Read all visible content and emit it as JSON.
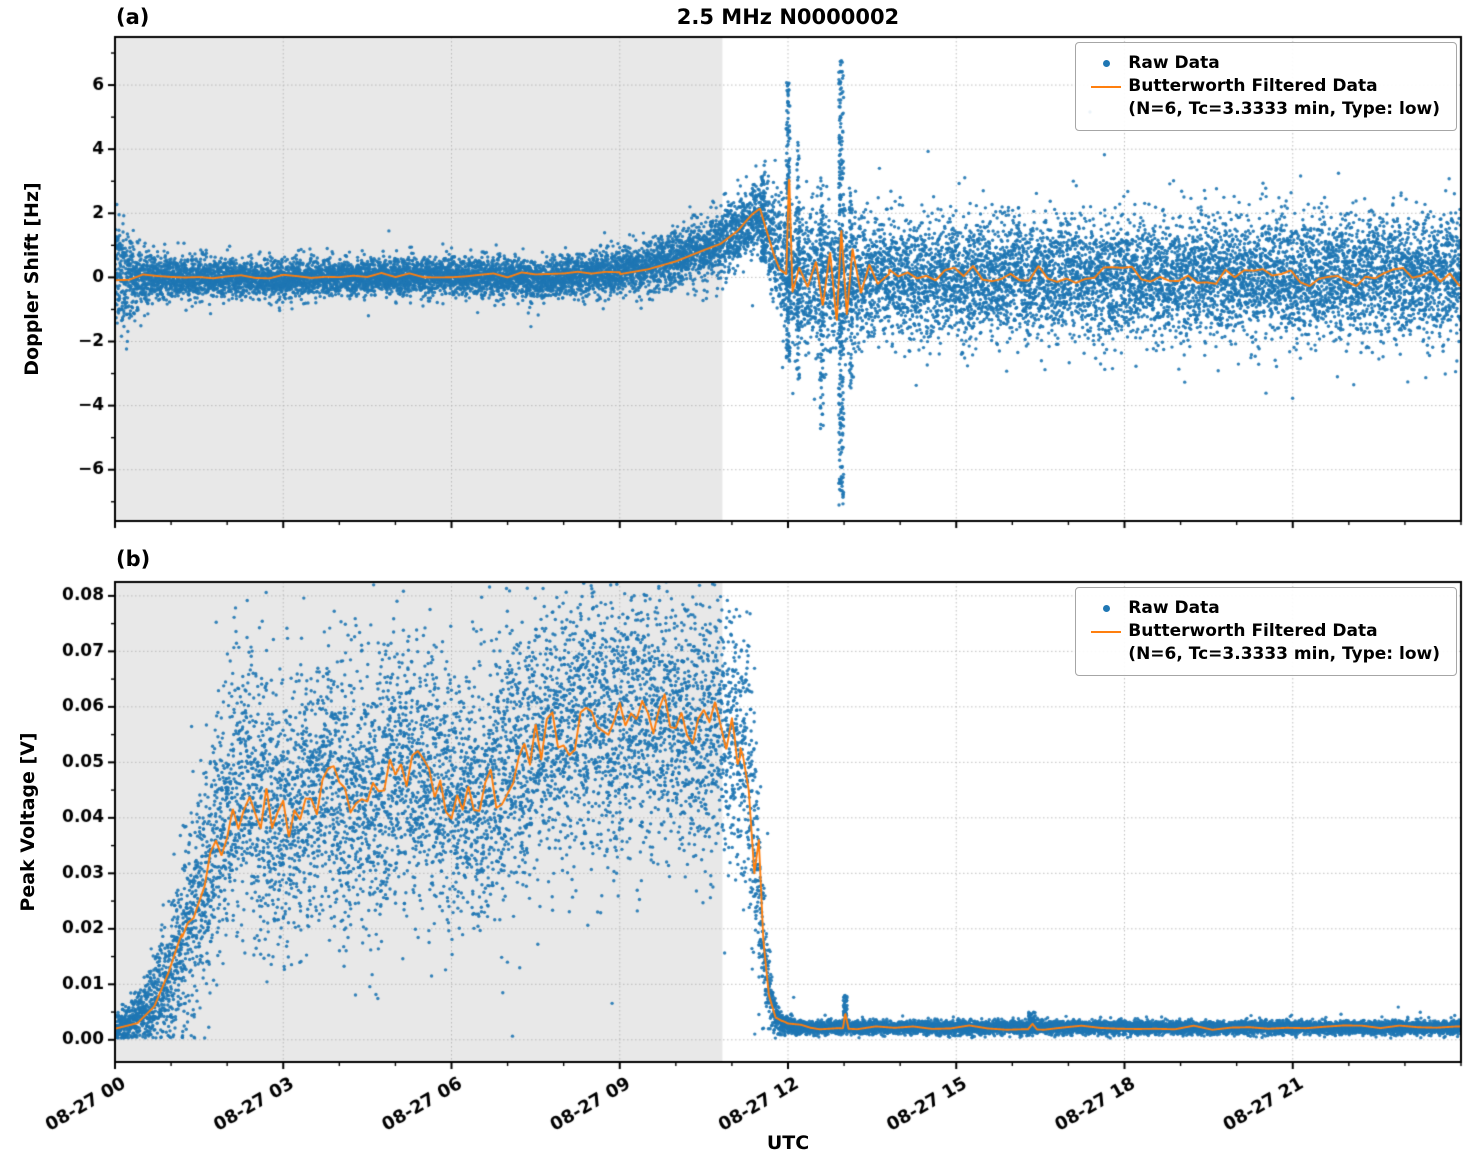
{
  "figure": {
    "panel_a_label": "(a)",
    "panel_b_label": "(b)",
    "colors": {
      "raw": "#1f77b4",
      "filtered": "#ff7f0e",
      "shade": "#e8e8e8",
      "grid": "#b0b0b0",
      "frame": "#000000",
      "legend_border": "#a6a6a6",
      "background": "#ffffff"
    }
  },
  "legend": {
    "raw_label": "Raw Data",
    "filtered_label": "Butterworth Filtered Data",
    "filtered_sublabel": "(N=6, Tc=3.3333 min, Type: low)"
  },
  "chart_data": [
    {
      "type": "scatter",
      "panel": "a",
      "title": "2.5 MHz N0000002",
      "ylabel": "Doppler Shift [Hz]",
      "xlabel": "",
      "ylim": [
        -7.6,
        7.5
      ],
      "yticks": [
        -6,
        -4,
        -2,
        0,
        2,
        4,
        6
      ],
      "ytick_labels": [
        "−6",
        "−4",
        "−2",
        "0",
        "2",
        "4",
        "6"
      ],
      "yticks_minor": [
        -7,
        -5,
        -3,
        -1,
        1,
        3,
        5,
        7
      ],
      "x_hours_range": [
        0,
        24
      ],
      "xtick_hours": [
        0,
        3,
        6,
        9,
        12,
        15,
        18,
        21
      ],
      "xtick_labels": [
        "08-27 00",
        "08-27 03",
        "08-27 06",
        "08-27 09",
        "08-27 12",
        "08-27 15",
        "08-27 18",
        "08-27 21"
      ],
      "show_xticklabels": false,
      "grid": true,
      "legend_position": "upper right",
      "shaded_region_hours": [
        0,
        10.83
      ],
      "raw": {
        "name": "Raw Data",
        "count": 16000,
        "size": 1.7,
        "profile": [
          [
            0,
            0.1,
            0.95
          ],
          [
            0.2,
            0,
            0.7
          ],
          [
            0.5,
            0,
            0.45
          ],
          [
            1,
            0,
            0.33
          ],
          [
            2,
            0,
            0.3
          ],
          [
            3,
            -0.05,
            0.29
          ],
          [
            4,
            0,
            0.28
          ],
          [
            5,
            0,
            0.29
          ],
          [
            6,
            0.05,
            0.3
          ],
          [
            7,
            0,
            0.3
          ],
          [
            7.6,
            -0.1,
            0.3
          ],
          [
            8,
            0.05,
            0.31
          ],
          [
            8.7,
            0.1,
            0.34
          ],
          [
            9.3,
            0.25,
            0.38
          ],
          [
            9.8,
            0.45,
            0.42
          ],
          [
            10.2,
            0.7,
            0.45
          ],
          [
            10.6,
            0.95,
            0.5
          ],
          [
            11,
            1.3,
            0.55
          ],
          [
            11.3,
            1.65,
            0.62
          ],
          [
            11.5,
            1.9,
            0.7
          ],
          [
            11.7,
            1.3,
            0.95
          ],
          [
            11.9,
            0.5,
            1.1
          ],
          [
            12.1,
            0,
            1.1
          ],
          [
            12.4,
            -0.1,
            1.1
          ],
          [
            12.7,
            -0.2,
            1.15
          ],
          [
            13,
            -0.1,
            1.15
          ],
          [
            13.4,
            0,
            1.0
          ],
          [
            14,
            0,
            0.95
          ],
          [
            16,
            0,
            0.95
          ],
          [
            18,
            0,
            0.95
          ],
          [
            20,
            0,
            0.95
          ],
          [
            22,
            0,
            0.95
          ],
          [
            24,
            0,
            0.95
          ]
        ],
        "bursts": [
          [
            11.55,
            0.5,
            3.3,
            0.06,
            60
          ],
          [
            12.0,
            -2.6,
            6.15,
            0.07,
            170
          ],
          [
            12.18,
            -3.2,
            4.3,
            0.05,
            80
          ],
          [
            12.6,
            -4.8,
            3.2,
            0.06,
            80
          ],
          [
            12.95,
            -7.15,
            6.8,
            0.09,
            240
          ],
          [
            13.12,
            -3.5,
            2.8,
            0.05,
            60
          ]
        ]
      },
      "filtered": {
        "name": "Butterworth Filtered Data (N=6, Tc=3.3333 min, Type: low)",
        "points": [
          [
            0,
            0
          ],
          [
            9,
            0.1
          ],
          [
            9.5,
            0.25
          ],
          [
            10,
            0.5
          ],
          [
            10.5,
            0.85
          ],
          [
            10.8,
            1.05
          ],
          [
            11.1,
            1.45
          ],
          [
            11.35,
            1.95
          ],
          [
            11.5,
            2.15
          ],
          [
            11.62,
            1.45
          ],
          [
            11.75,
            0.7
          ],
          [
            11.85,
            0.25
          ],
          [
            11.97,
            0.1
          ],
          [
            12.02,
            3.3
          ],
          [
            12.08,
            -0.45
          ],
          [
            12.2,
            0.3
          ],
          [
            12.35,
            -0.3
          ],
          [
            12.5,
            0.5
          ],
          [
            12.62,
            -0.9
          ],
          [
            12.75,
            0.8
          ],
          [
            12.87,
            -1.4
          ],
          [
            12.95,
            1.5
          ],
          [
            13.05,
            -1.2
          ],
          [
            13.15,
            0.9
          ],
          [
            13.3,
            -0.5
          ],
          [
            13.45,
            0.4
          ],
          [
            13.6,
            -0.2
          ],
          [
            13.8,
            0.1
          ],
          [
            24,
            0
          ]
        ],
        "noise": [
          {
            "from": 0,
            "to": 9,
            "amp": 0.09,
            "freq": 4
          },
          {
            "from": 13.8,
            "to": 24,
            "amp": 0.3,
            "freq": 6
          }
        ]
      }
    },
    {
      "type": "scatter",
      "panel": "b",
      "title": "",
      "ylabel": "Peak Voltage [V]",
      "xlabel": "UTC",
      "ylim": [
        -0.004,
        0.0825
      ],
      "yticks": [
        0,
        0.01,
        0.02,
        0.03,
        0.04,
        0.05,
        0.06,
        0.07,
        0.08
      ],
      "ytick_labels": [
        "0.00",
        "0.01",
        "0.02",
        "0.03",
        "0.04",
        "0.05",
        "0.06",
        "0.07",
        "0.08"
      ],
      "yticks_minor": [
        0.005,
        0.015,
        0.025,
        0.035,
        0.045,
        0.055,
        0.065,
        0.075
      ],
      "x_hours_range": [
        0,
        24
      ],
      "xtick_hours": [
        0,
        3,
        6,
        9,
        12,
        15,
        18,
        21
      ],
      "xtick_labels": [
        "08-27 00",
        "08-27 03",
        "08-27 06",
        "08-27 09",
        "08-27 12",
        "08-27 15",
        "08-27 18",
        "08-27 21"
      ],
      "show_xticklabels": true,
      "grid": true,
      "legend_position": "upper right",
      "shaded_region_hours": [
        0,
        10.83
      ],
      "clamp_min": 0.0003,
      "raw": {
        "name": "Raw Data",
        "count": 15000,
        "size": 1.7,
        "profile": [
          [
            0,
            0.002,
            0.0012
          ],
          [
            0.3,
            0.003,
            0.0018
          ],
          [
            0.6,
            0.006,
            0.003
          ],
          [
            0.9,
            0.01,
            0.005
          ],
          [
            1.1,
            0.015,
            0.007
          ],
          [
            1.35,
            0.022,
            0.009
          ],
          [
            1.6,
            0.028,
            0.011
          ],
          [
            1.85,
            0.035,
            0.012
          ],
          [
            2.1,
            0.043,
            0.013
          ],
          [
            2.4,
            0.044,
            0.013
          ],
          [
            2.7,
            0.041,
            0.012
          ],
          [
            3,
            0.04,
            0.012
          ],
          [
            3.3,
            0.042,
            0.012
          ],
          [
            3.6,
            0.046,
            0.012
          ],
          [
            3.9,
            0.045,
            0.012
          ],
          [
            4.2,
            0.044,
            0.012
          ],
          [
            4.6,
            0.045,
            0.012
          ],
          [
            5,
            0.047,
            0.012
          ],
          [
            5.4,
            0.048,
            0.012
          ],
          [
            5.8,
            0.047,
            0.012
          ],
          [
            6.1,
            0.043,
            0.011
          ],
          [
            6.5,
            0.044,
            0.011
          ],
          [
            6.9,
            0.047,
            0.012
          ],
          [
            7.3,
            0.051,
            0.012
          ],
          [
            7.7,
            0.054,
            0.012
          ],
          [
            8.1,
            0.056,
            0.012
          ],
          [
            8.5,
            0.057,
            0.012
          ],
          [
            8.9,
            0.057,
            0.012
          ],
          [
            9.3,
            0.06,
            0.012
          ],
          [
            9.7,
            0.059,
            0.012
          ],
          [
            10,
            0.057,
            0.012
          ],
          [
            10.4,
            0.056,
            0.013
          ],
          [
            10.8,
            0.056,
            0.013
          ],
          [
            11.1,
            0.054,
            0.013
          ],
          [
            11.3,
            0.047,
            0.012
          ],
          [
            11.45,
            0.032,
            0.009
          ],
          [
            11.6,
            0.014,
            0.005
          ],
          [
            11.75,
            0.005,
            0.0018
          ],
          [
            11.9,
            0.0028,
            0.0009
          ],
          [
            12.2,
            0.0022,
            0.0006
          ],
          [
            24,
            0.0022,
            0.0006
          ]
        ],
        "bursts": [
          [
            13.02,
            0.003,
            0.008,
            0.07,
            50
          ],
          [
            16.35,
            0.0025,
            0.005,
            0.12,
            40
          ]
        ]
      },
      "filtered": {
        "name": "Butterworth Filtered Data (N=6, Tc=3.3333 min, Type: low)",
        "points": [
          [
            0,
            0.002
          ],
          [
            0.4,
            0.003
          ],
          [
            0.7,
            0.006
          ],
          [
            0.95,
            0.012
          ],
          [
            1.15,
            0.018
          ],
          [
            1.4,
            0.024
          ],
          [
            1.7,
            0.03
          ],
          [
            2,
            0.037
          ],
          [
            2.3,
            0.043
          ],
          [
            2.6,
            0.042
          ],
          [
            3,
            0.04
          ],
          [
            3.4,
            0.043
          ],
          [
            3.8,
            0.046
          ],
          [
            4.2,
            0.044
          ],
          [
            4.6,
            0.045
          ],
          [
            5,
            0.047
          ],
          [
            5.4,
            0.048
          ],
          [
            5.8,
            0.047
          ],
          [
            6.1,
            0.042
          ],
          [
            6.5,
            0.044
          ],
          [
            6.9,
            0.047
          ],
          [
            7.3,
            0.051
          ],
          [
            7.7,
            0.054
          ],
          [
            8.1,
            0.056
          ],
          [
            8.5,
            0.057
          ],
          [
            9,
            0.058
          ],
          [
            9.3,
            0.061
          ],
          [
            9.7,
            0.059
          ],
          [
            10,
            0.057
          ],
          [
            10.4,
            0.056
          ],
          [
            10.8,
            0.057
          ],
          [
            11.05,
            0.056
          ],
          [
            11.2,
            0.051
          ],
          [
            11.3,
            0.045
          ],
          [
            11.4,
            0.03
          ],
          [
            11.48,
            0.036
          ],
          [
            11.56,
            0.018
          ],
          [
            11.66,
            0.008
          ],
          [
            11.78,
            0.004
          ],
          [
            12,
            0.0028
          ],
          [
            12.4,
            0.0022
          ],
          [
            12.98,
            0.0022
          ],
          [
            13.02,
            0.005
          ],
          [
            13.08,
            0.0022
          ],
          [
            16.28,
            0.0022
          ],
          [
            16.36,
            0.0032
          ],
          [
            16.44,
            0.0022
          ],
          [
            24,
            0.0022
          ]
        ],
        "noise": [
          {
            "from": 1.2,
            "to": 11.15,
            "amp": 0.0048,
            "freq": 10
          },
          {
            "from": 11.9,
            "to": 24,
            "amp": 0.0004,
            "freq": 3
          }
        ]
      }
    }
  ]
}
